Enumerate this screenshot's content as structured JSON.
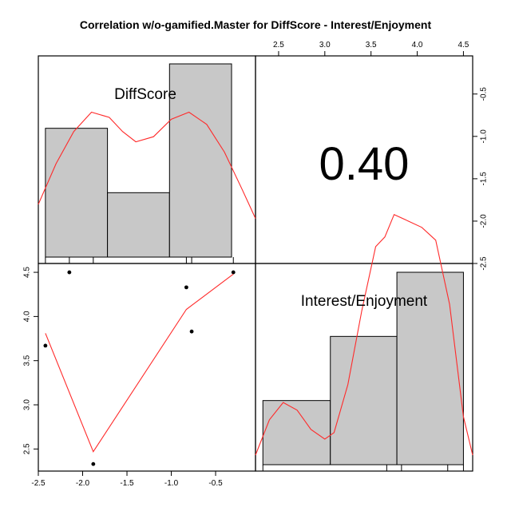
{
  "chart_data": {
    "type": "scatter-matrix",
    "title": "Correlation w/o-gamified.Master for DiffScore - Interest/Enjoyment",
    "variables": [
      "DiffScore",
      "Interest/Enjoyment"
    ],
    "correlation": "0.40",
    "diffscore": {
      "axis_ticks": [
        -2.5,
        -2.0,
        -1.5,
        -1.0,
        -0.5
      ],
      "axis_tick_labels": [
        "-2.5",
        "-2.0",
        "-1.5",
        "-1.0",
        "-0.5"
      ],
      "xlim": [
        -2.5,
        -0.05
      ],
      "hist_breaks": [
        -2.42,
        -1.72,
        -1.02,
        -0.32
      ],
      "hist_counts": [
        2,
        1,
        3
      ],
      "density": [
        [
          -2.5,
          0.82
        ],
        [
          -2.3,
          1.45
        ],
        [
          -2.1,
          1.95
        ],
        [
          -1.9,
          2.25
        ],
        [
          -1.7,
          2.17
        ],
        [
          -1.55,
          1.95
        ],
        [
          -1.4,
          1.79
        ],
        [
          -1.2,
          1.87
        ],
        [
          -1.0,
          2.14
        ],
        [
          -0.8,
          2.25
        ],
        [
          -0.6,
          2.06
        ],
        [
          -0.4,
          1.63
        ],
        [
          -0.2,
          1.05
        ],
        [
          -0.05,
          0.6
        ]
      ],
      "rug": [
        -2.42,
        -2.15,
        -1.88,
        -0.83,
        -0.77,
        -0.3
      ]
    },
    "interest": {
      "axis_ticks": [
        2.5,
        3.0,
        3.5,
        4.0,
        4.5
      ],
      "axis_tick_labels": [
        "2.5",
        "3.0",
        "3.5",
        "4.0",
        "4.5"
      ],
      "xlim": [
        2.25,
        4.6
      ],
      "hist_breaks": [
        2.33,
        3.06,
        3.78,
        4.5
      ],
      "hist_counts": [
        1,
        2,
        3
      ],
      "density": [
        [
          2.25,
          0.15
        ],
        [
          2.4,
          0.7
        ],
        [
          2.55,
          0.97
        ],
        [
          2.7,
          0.85
        ],
        [
          2.85,
          0.55
        ],
        [
          3.0,
          0.4
        ],
        [
          3.1,
          0.5
        ],
        [
          3.25,
          1.25
        ],
        [
          3.4,
          2.4
        ],
        [
          3.55,
          3.4
        ],
        [
          3.65,
          3.55
        ],
        [
          3.75,
          3.9
        ],
        [
          3.9,
          3.8
        ],
        [
          4.05,
          3.7
        ],
        [
          4.2,
          3.5
        ],
        [
          4.35,
          2.5
        ],
        [
          4.5,
          0.75
        ],
        [
          4.6,
          0.15
        ]
      ],
      "rug": [
        2.33,
        3.67,
        3.83,
        4.33,
        4.5
      ]
    },
    "points": [
      {
        "x": -2.42,
        "y": 3.67
      },
      {
        "x": -2.15,
        "y": 4.5
      },
      {
        "x": -1.88,
        "y": 2.33
      },
      {
        "x": -0.83,
        "y": 4.33
      },
      {
        "x": -0.77,
        "y": 3.83
      },
      {
        "x": -0.3,
        "y": 4.5
      }
    ],
    "loess": [
      [
        -2.42,
        3.81
      ],
      [
        -1.88,
        2.47
      ],
      [
        -0.83,
        4.08
      ],
      [
        -0.3,
        4.48
      ]
    ]
  }
}
